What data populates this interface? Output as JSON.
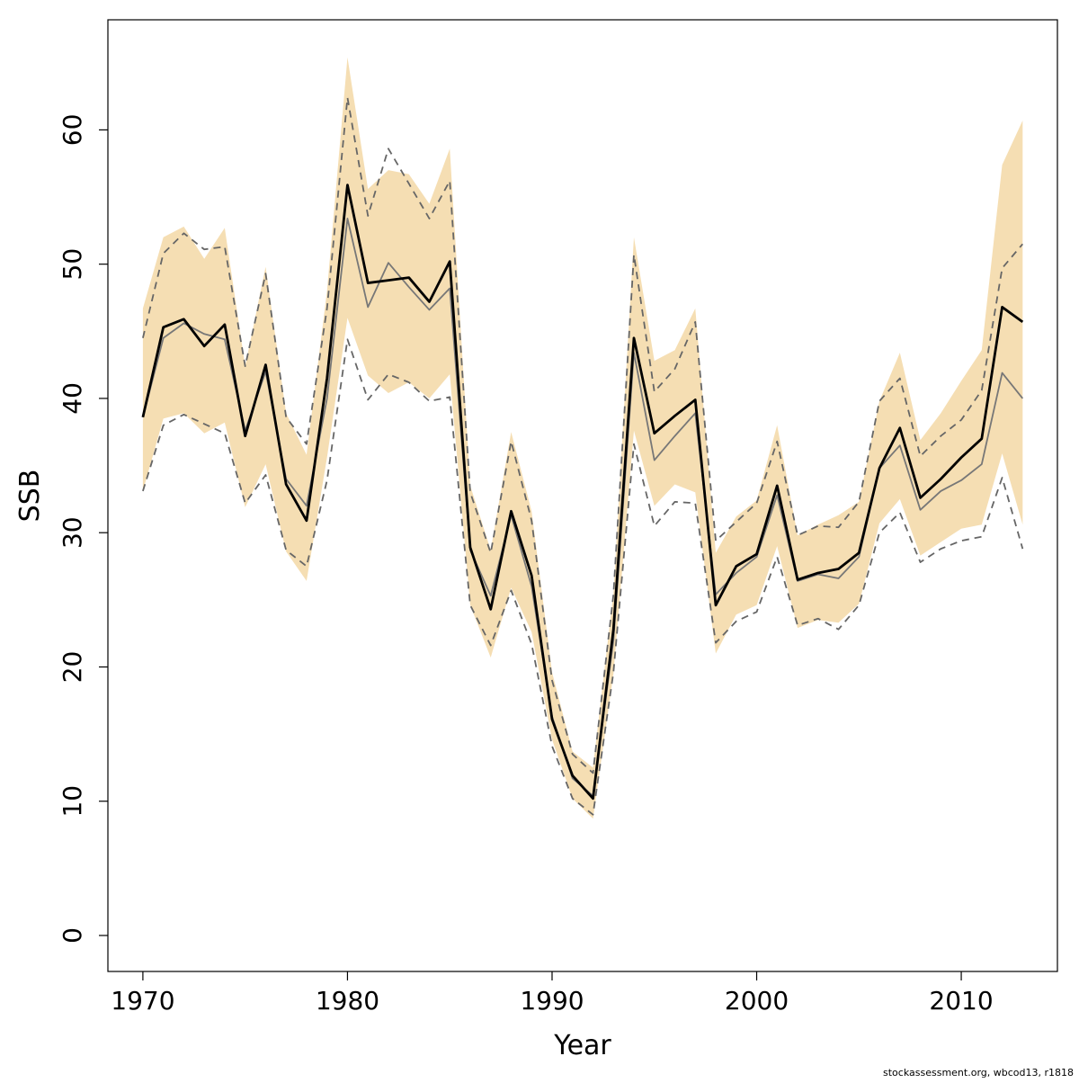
{
  "chart_data": {
    "type": "line",
    "xlabel": "Year",
    "ylabel": "SSB",
    "footnote": "stockassessment.org, wbcod13, r1818",
    "x": [
      1970,
      1971,
      1972,
      1973,
      1974,
      1975,
      1976,
      1977,
      1978,
      1979,
      1980,
      1981,
      1982,
      1983,
      1984,
      1985,
      1986,
      1987,
      1988,
      1989,
      1990,
      1991,
      1992,
      1993,
      1994,
      1995,
      1996,
      1997,
      1998,
      1999,
      2000,
      2001,
      2002,
      2003,
      2004,
      2005,
      2006,
      2007,
      2008,
      2009,
      2010,
      2011,
      2012,
      2013
    ],
    "band": {
      "color": "#f5deb3",
      "upper": [
        46.7,
        52.0,
        52.8,
        50.4,
        52.7,
        42.4,
        49.8,
        38.9,
        35.8,
        48.0,
        65.4,
        55.6,
        57.0,
        56.7,
        54.5,
        58.6,
        33.5,
        28.7,
        37.5,
        31.6,
        19.6,
        13.7,
        12.5,
        25.5,
        52.0,
        42.8,
        43.6,
        46.7,
        28.5,
        31.2,
        32.4,
        38.0,
        29.8,
        30.6,
        31.3,
        32.3,
        39.8,
        43.4,
        36.9,
        38.9,
        41.3,
        43.6,
        57.4,
        60.7
      ],
      "lower": [
        33.1,
        38.5,
        38.9,
        37.4,
        38.2,
        31.9,
        35.1,
        28.6,
        26.4,
        35.6,
        46.0,
        41.7,
        40.4,
        41.2,
        40.0,
        41.8,
        24.6,
        20.7,
        25.9,
        22.6,
        14.6,
        10.2,
        8.7,
        19.5,
        37.6,
        32.0,
        33.6,
        33.0,
        21.0,
        23.9,
        24.6,
        29.0,
        22.9,
        23.5,
        23.3,
        24.7,
        30.7,
        32.5,
        28.3,
        29.3,
        30.3,
        30.6,
        35.9,
        30.6
      ]
    },
    "series": [
      {
        "color": "#666666",
        "dashed": true,
        "width": 1.8,
        "values": [
          44.5,
          50.8,
          52.3,
          51.1,
          51.3,
          42.4,
          49.3,
          38.6,
          36.6,
          46.7,
          62.4,
          53.6,
          58.6,
          56.0,
          53.4,
          56.2,
          33.0,
          28.5,
          36.8,
          30.9,
          19.0,
          13.5,
          12.1,
          25.4,
          50.7,
          40.5,
          42.2,
          45.7,
          29.4,
          30.8,
          32.2,
          36.8,
          29.8,
          30.5,
          30.4,
          32.3,
          39.8,
          41.5,
          35.7,
          37.2,
          38.4,
          40.6,
          49.7,
          51.5
        ]
      },
      {
        "color": "#666666",
        "dashed": true,
        "width": 1.8,
        "values": [
          33.1,
          38.0,
          38.8,
          38.1,
          37.4,
          32.2,
          34.3,
          28.7,
          27.5,
          33.9,
          44.4,
          39.9,
          41.8,
          41.2,
          39.8,
          40.1,
          24.6,
          21.6,
          25.7,
          21.7,
          14.1,
          10.2,
          9.0,
          19.6,
          36.6,
          30.5,
          32.3,
          32.2,
          21.8,
          23.4,
          24.1,
          28.2,
          23.1,
          23.6,
          22.8,
          24.6,
          30.0,
          31.5,
          27.8,
          28.8,
          29.4,
          29.7,
          34.1,
          28.8
        ]
      },
      {
        "color": "#777777",
        "dashed": false,
        "width": 1.8,
        "values": [
          38.6,
          44.5,
          45.6,
          44.8,
          44.4,
          37.6,
          42.0,
          34.0,
          32.0,
          40.0,
          53.4,
          46.8,
          50.1,
          48.3,
          46.6,
          48.2,
          28.7,
          25.3,
          31.3,
          26.0,
          16.3,
          11.7,
          10.4,
          22.0,
          43.4,
          35.4,
          37.2,
          38.9,
          25.4,
          27.0,
          28.2,
          32.8,
          26.4,
          26.9,
          26.6,
          28.2,
          34.8,
          36.5,
          31.7,
          33.1,
          33.9,
          35.1,
          41.9,
          40.0
        ]
      },
      {
        "color": "#000000",
        "dashed": false,
        "width": 2.8,
        "values": [
          38.6,
          45.3,
          45.9,
          43.9,
          45.5,
          37.2,
          42.5,
          33.6,
          30.9,
          41.5,
          55.9,
          48.6,
          48.8,
          49.0,
          47.2,
          50.2,
          28.9,
          24.3,
          31.6,
          26.8,
          16.1,
          11.9,
          10.2,
          22.8,
          44.5,
          37.4,
          38.7,
          39.9,
          24.6,
          27.5,
          28.4,
          33.5,
          26.5,
          27.0,
          27.3,
          28.5,
          34.8,
          37.8,
          32.6,
          34.0,
          35.6,
          37.0,
          46.8,
          45.7
        ]
      }
    ],
    "xlim": [
      1968.29,
      2014.7
    ],
    "xticks": [
      1970,
      1980,
      1990,
      2000,
      2010
    ],
    "ylim": [
      -2.68,
      68.2
    ],
    "yticks": [
      0,
      10,
      20,
      30,
      40,
      50,
      60
    ]
  }
}
